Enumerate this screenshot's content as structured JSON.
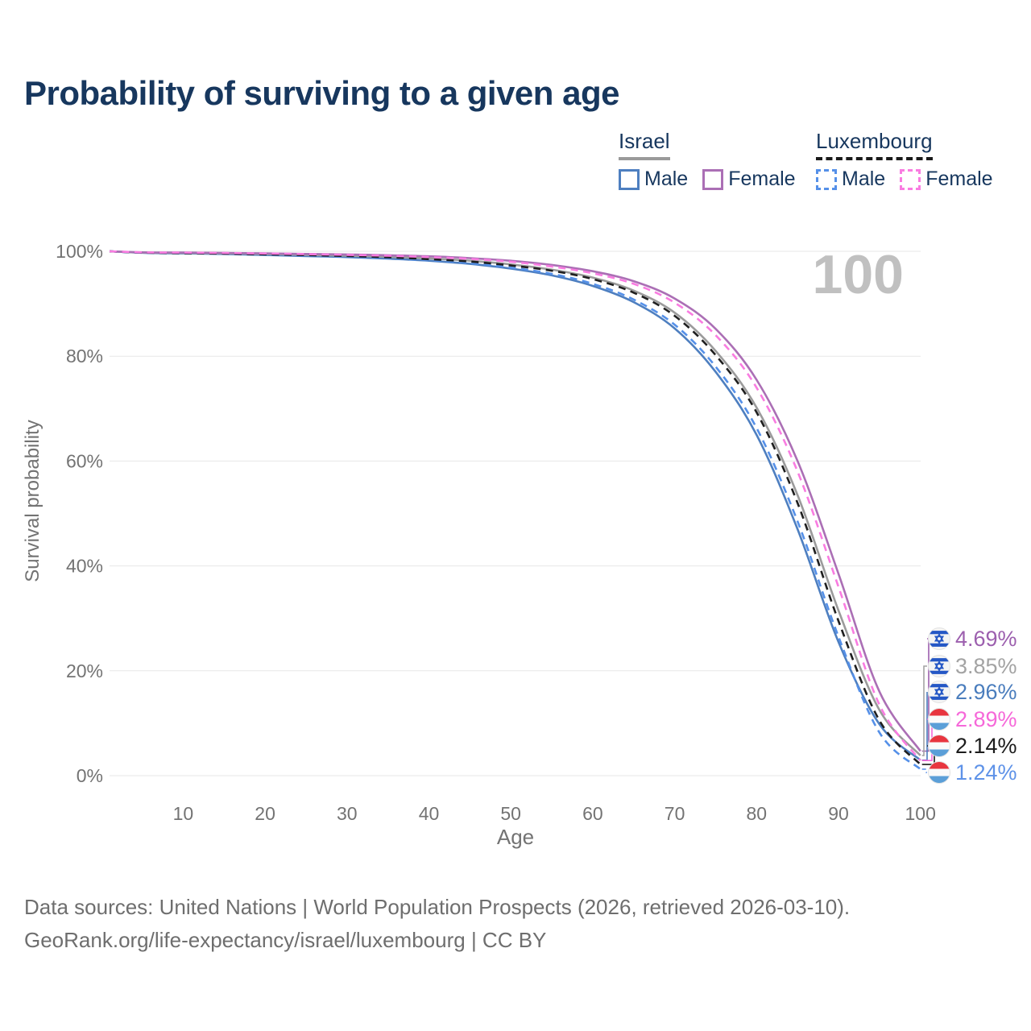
{
  "title": "Probability of surviving to a given age",
  "watermark": "100",
  "legend": {
    "groups": [
      {
        "label": "Israel",
        "underline_style": "solid",
        "underline_color": "#9a9a9a",
        "items": [
          {
            "label": "Male",
            "color": "#4e7fc0",
            "dashed": false
          },
          {
            "label": "Female",
            "color": "#ab6fb5",
            "dashed": false
          }
        ]
      },
      {
        "label": "Luxembourg",
        "underline_style": "dashed",
        "underline_color": "#1a1a1a",
        "items": [
          {
            "label": "Male",
            "color": "#5590e8",
            "dashed": true
          },
          {
            "label": "Female",
            "color": "#f97ce1",
            "dashed": true
          }
        ]
      }
    ]
  },
  "chart_data": {
    "type": "line",
    "title": "Probability of surviving to a given age",
    "xlabel": "Age",
    "ylabel": "Survival probability",
    "xlim": [
      0,
      100
    ],
    "ylim": [
      0,
      100
    ],
    "grid": "horizontal-only",
    "x_ticks": [
      10,
      20,
      30,
      40,
      50,
      60,
      70,
      80,
      90,
      100
    ],
    "y_tick_values": [
      0,
      20,
      40,
      60,
      80,
      100
    ],
    "y_tick_labels": [
      "0%",
      "20%",
      "40%",
      "60%",
      "80%",
      "100%"
    ],
    "x": [
      0,
      5,
      10,
      15,
      20,
      25,
      30,
      35,
      40,
      45,
      50,
      55,
      60,
      65,
      70,
      75,
      80,
      85,
      90,
      95,
      100
    ],
    "series": [
      {
        "name": "Israel Male",
        "color": "#4e7fc0",
        "dashed": false,
        "values": [
          100,
          99.72,
          99.6,
          99.5,
          99.3,
          99.1,
          98.9,
          98.6,
          98.2,
          97.6,
          96.7,
          95.4,
          93.4,
          90.3,
          85.3,
          77,
          65,
          47,
          25.5,
          9.8,
          2.96
        ]
      },
      {
        "name": "Israel",
        "color": "#9b9b9b",
        "dashed": false,
        "values": [
          100,
          99.75,
          99.68,
          99.6,
          99.48,
          99.33,
          99.16,
          98.95,
          98.65,
          98.2,
          97.5,
          96.5,
          95,
          92.5,
          88.3,
          81,
          70.2,
          53.5,
          31.5,
          12.5,
          3.85
        ]
      },
      {
        "name": "Israel Female",
        "color": "#ab6fb5",
        "dashed": false,
        "values": [
          100,
          99.8,
          99.75,
          99.7,
          99.6,
          99.5,
          99.4,
          99.25,
          99.05,
          98.7,
          98.2,
          97.4,
          96.2,
          94.3,
          91,
          85.2,
          75.5,
          60,
          38.5,
          16,
          4.69
        ]
      },
      {
        "name": "Luxembourg Male",
        "color": "#5590e8",
        "dashed": true,
        "values": [
          100,
          99.72,
          99.62,
          99.52,
          99.35,
          99.15,
          98.95,
          98.68,
          98.3,
          97.75,
          96.9,
          95.7,
          93.8,
          90.8,
          86,
          78,
          66.3,
          48.5,
          26.5,
          8.2,
          1.24
        ]
      },
      {
        "name": "Luxembourg",
        "color": "#1f1f1f",
        "dashed": true,
        "values": [
          100,
          99.75,
          99.65,
          99.55,
          99.42,
          99.27,
          99.1,
          98.85,
          98.5,
          98.05,
          97.3,
          96.3,
          94.7,
          92.1,
          87.7,
          80.2,
          69.3,
          52,
          29.5,
          10.5,
          2.14
        ]
      },
      {
        "name": "Luxembourg Female",
        "color": "#f97ce1",
        "dashed": true,
        "values": [
          100,
          99.8,
          99.75,
          99.68,
          99.58,
          99.46,
          99.33,
          99.15,
          98.9,
          98.55,
          98,
          97.1,
          95.8,
          93.8,
          90.2,
          84,
          74,
          58,
          36,
          13.5,
          2.89
        ]
      }
    ],
    "end_labels": [
      {
        "series": "Israel Female",
        "value": "4.69%",
        "color": "#9c5fae",
        "flag": "israel"
      },
      {
        "series": "Israel",
        "value": "3.85%",
        "color": "#a3a3a3",
        "flag": "israel"
      },
      {
        "series": "Israel Male",
        "value": "2.96%",
        "color": "#4a7dbd",
        "flag": "israel"
      },
      {
        "series": "Luxembourg Female",
        "value": "2.89%",
        "color": "#f668d9",
        "flag": "luxembourg"
      },
      {
        "series": "Luxembourg",
        "value": "2.14%",
        "color": "#1c1c1c",
        "flag": "luxembourg"
      },
      {
        "series": "Luxembourg Male",
        "value": "1.24%",
        "color": "#5e92e8",
        "flag": "luxembourg"
      }
    ]
  },
  "icons": {
    "israel_flag": {
      "background": "#f4f4f4",
      "stripe_color": "#2457c5",
      "ring": "#e2e2e2"
    },
    "luxembourg_flag": {
      "red": "#e8353f",
      "white": "#fafafa",
      "blue": "#5b9fd8",
      "ring": "#e2e2e2"
    }
  },
  "footer": {
    "line1": "Data sources: United Nations | World Population Prospects (2026, retrieved 2026-03-10).",
    "line2": "GeoRank.org/life-expectancy/israel/luxembourg | CC BY"
  }
}
